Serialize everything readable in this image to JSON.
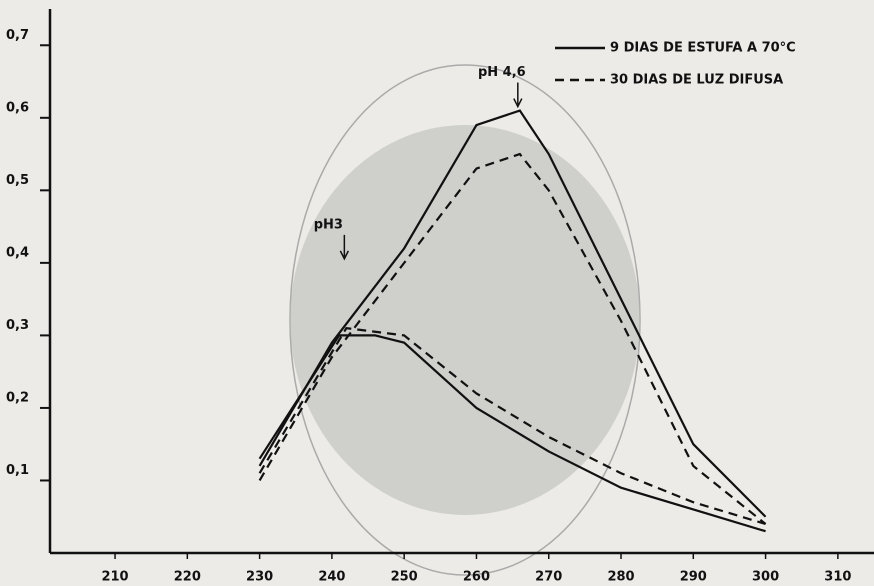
{
  "chart_data": {
    "type": "line",
    "x_note_free": null,
    "series": [
      {
        "name": "9 DIAS DE ESTUFA A 70°C",
        "color": "#111111",
        "dashed": false,
        "x": [
          230,
          240,
          250,
          260,
          266,
          270,
          280,
          290,
          300
        ],
        "values": [
          0.12,
          0.29,
          0.42,
          0.59,
          0.61,
          0.55,
          0.35,
          0.15,
          0.05
        ]
      },
      {
        "name": "30 DIAS DE LUZ DIFUSA",
        "color": "#111111",
        "dashed": true,
        "x": [
          230,
          240,
          250,
          260,
          266,
          270,
          280,
          290,
          300
        ],
        "values": [
          0.1,
          0.27,
          0.4,
          0.53,
          0.55,
          0.5,
          0.32,
          0.12,
          0.04
        ]
      },
      {
        "color": "#111111",
        "dashed": false,
        "x": [
          230,
          241,
          246,
          250,
          260,
          270,
          280,
          290,
          300
        ],
        "values": [
          0.13,
          0.3,
          0.3,
          0.29,
          0.2,
          0.14,
          0.09,
          0.06,
          0.03
        ]
      },
      {
        "color": "#111111",
        "dashed": true,
        "x": [
          230,
          242,
          250,
          260,
          270,
          280,
          290,
          300
        ],
        "values": [
          0.11,
          0.31,
          0.3,
          0.22,
          0.16,
          0.11,
          0.07,
          0.04
        ]
      }
    ],
    "annotations": [
      {
        "text": "pH 4,6",
        "x": 266,
        "y": 0.61
      },
      {
        "text": "pH3",
        "x": 242,
        "y": 0.4
      }
    ],
    "xlim": [
      201,
      315
    ],
    "ylim": [
      0,
      0.75
    ],
    "xticks": [
      210,
      220,
      230,
      240,
      250,
      260,
      270,
      280,
      290,
      300,
      310
    ],
    "yticks": [
      {
        "value": 0.1,
        "label": "0,1"
      },
      {
        "value": 0.2,
        "label": "0,2"
      },
      {
        "value": 0.3,
        "label": "0,3"
      },
      {
        "value": 0.4,
        "label": "0,4"
      },
      {
        "value": 0.5,
        "label": "0,5"
      },
      {
        "value": 0.6,
        "label": "0,6"
      },
      {
        "value": 0.7,
        "label": "0,7"
      }
    ],
    "legend": "upper right"
  }
}
